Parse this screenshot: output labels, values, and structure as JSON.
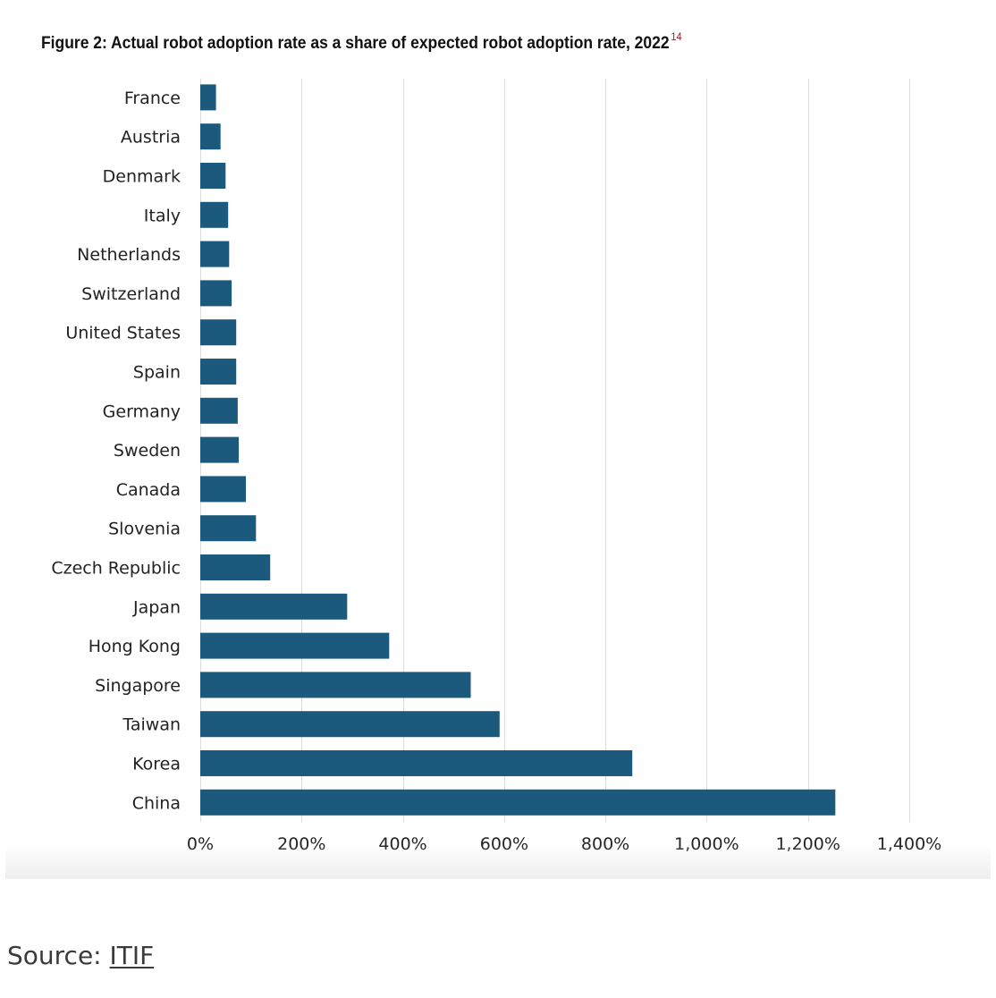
{
  "figure": {
    "title": "Figure 2: Actual robot adoption rate as a share of expected robot adoption rate, 2022",
    "footnote_ref": "14"
  },
  "source": {
    "label": "Source:",
    "link_text": "ITIF"
  },
  "chart_data": {
    "type": "bar",
    "orientation": "horizontal",
    "title": "Figure 2: Actual robot adoption rate as a share of expected robot adoption rate, 2022",
    "xlabel": "",
    "ylabel": "",
    "categories": [
      "France",
      "Austria",
      "Denmark",
      "Italy",
      "Netherlands",
      "Switzerland",
      "United States",
      "Spain",
      "Germany",
      "Sweden",
      "Canada",
      "Slovenia",
      "Czech Republic",
      "Japan",
      "Hong Kong",
      "Singapore",
      "Taiwan",
      "Korea",
      "China"
    ],
    "values": [
      31,
      40,
      50,
      55,
      57,
      62,
      71,
      71,
      74,
      76,
      90,
      110,
      138,
      290,
      373,
      534,
      591,
      853,
      1254
    ],
    "value_unit": "%",
    "xlim": [
      0,
      1400
    ],
    "ticks": [
      "0%",
      "200%",
      "400%",
      "600%",
      "800%",
      "1,000%",
      "1,200%",
      "1,400%"
    ],
    "tick_values": [
      0,
      200,
      400,
      600,
      800,
      1000,
      1200,
      1400
    ],
    "grid": "vertical",
    "legend": "none",
    "bar_color": "#1c5a7d"
  }
}
